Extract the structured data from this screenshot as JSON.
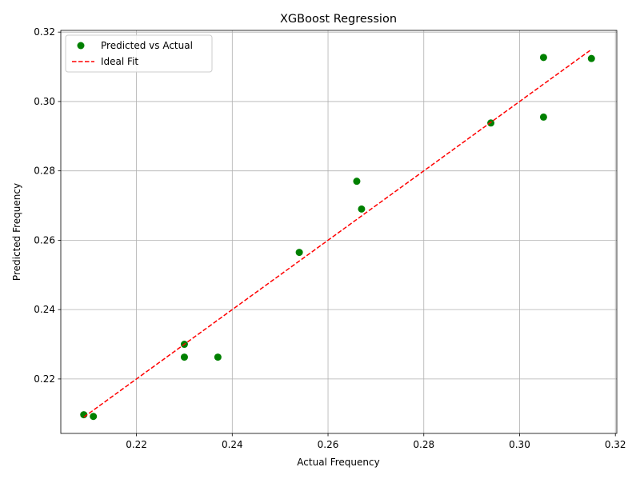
{
  "chart_data": {
    "type": "scatter",
    "title": "XGBoost Regression",
    "xlabel": "Actual Frequency",
    "ylabel": "Predicted Frequency",
    "xlim": [
      0.2042,
      0.3203
    ],
    "ylim": [
      0.2043,
      0.3205
    ],
    "xticks": [
      0.22,
      0.24,
      0.26,
      0.28,
      0.3,
      0.32
    ],
    "yticks": [
      0.22,
      0.24,
      0.26,
      0.28,
      0.3,
      0.32
    ],
    "xtick_labels": [
      "0.22",
      "0.24",
      "0.26",
      "0.28",
      "0.30",
      "0.32"
    ],
    "ytick_labels": [
      "0.22",
      "0.24",
      "0.26",
      "0.28",
      "0.30",
      "0.32"
    ],
    "grid": true,
    "legend_position": "top-left",
    "series": [
      {
        "name": "Predicted vs Actual",
        "kind": "scatter",
        "color": "#008000",
        "x": [
          0.209,
          0.211,
          0.23,
          0.23,
          0.237,
          0.254,
          0.266,
          0.267,
          0.294,
          0.305,
          0.305,
          0.315
        ],
        "y": [
          0.2097,
          0.2092,
          0.23,
          0.2263,
          0.2263,
          0.2565,
          0.277,
          0.269,
          0.2938,
          0.3127,
          0.2955,
          0.3124
        ]
      },
      {
        "name": "Ideal Fit",
        "kind": "line",
        "style": "dashed",
        "color": "#ff0000",
        "x": [
          0.209,
          0.315
        ],
        "y": [
          0.209,
          0.315
        ]
      }
    ]
  }
}
